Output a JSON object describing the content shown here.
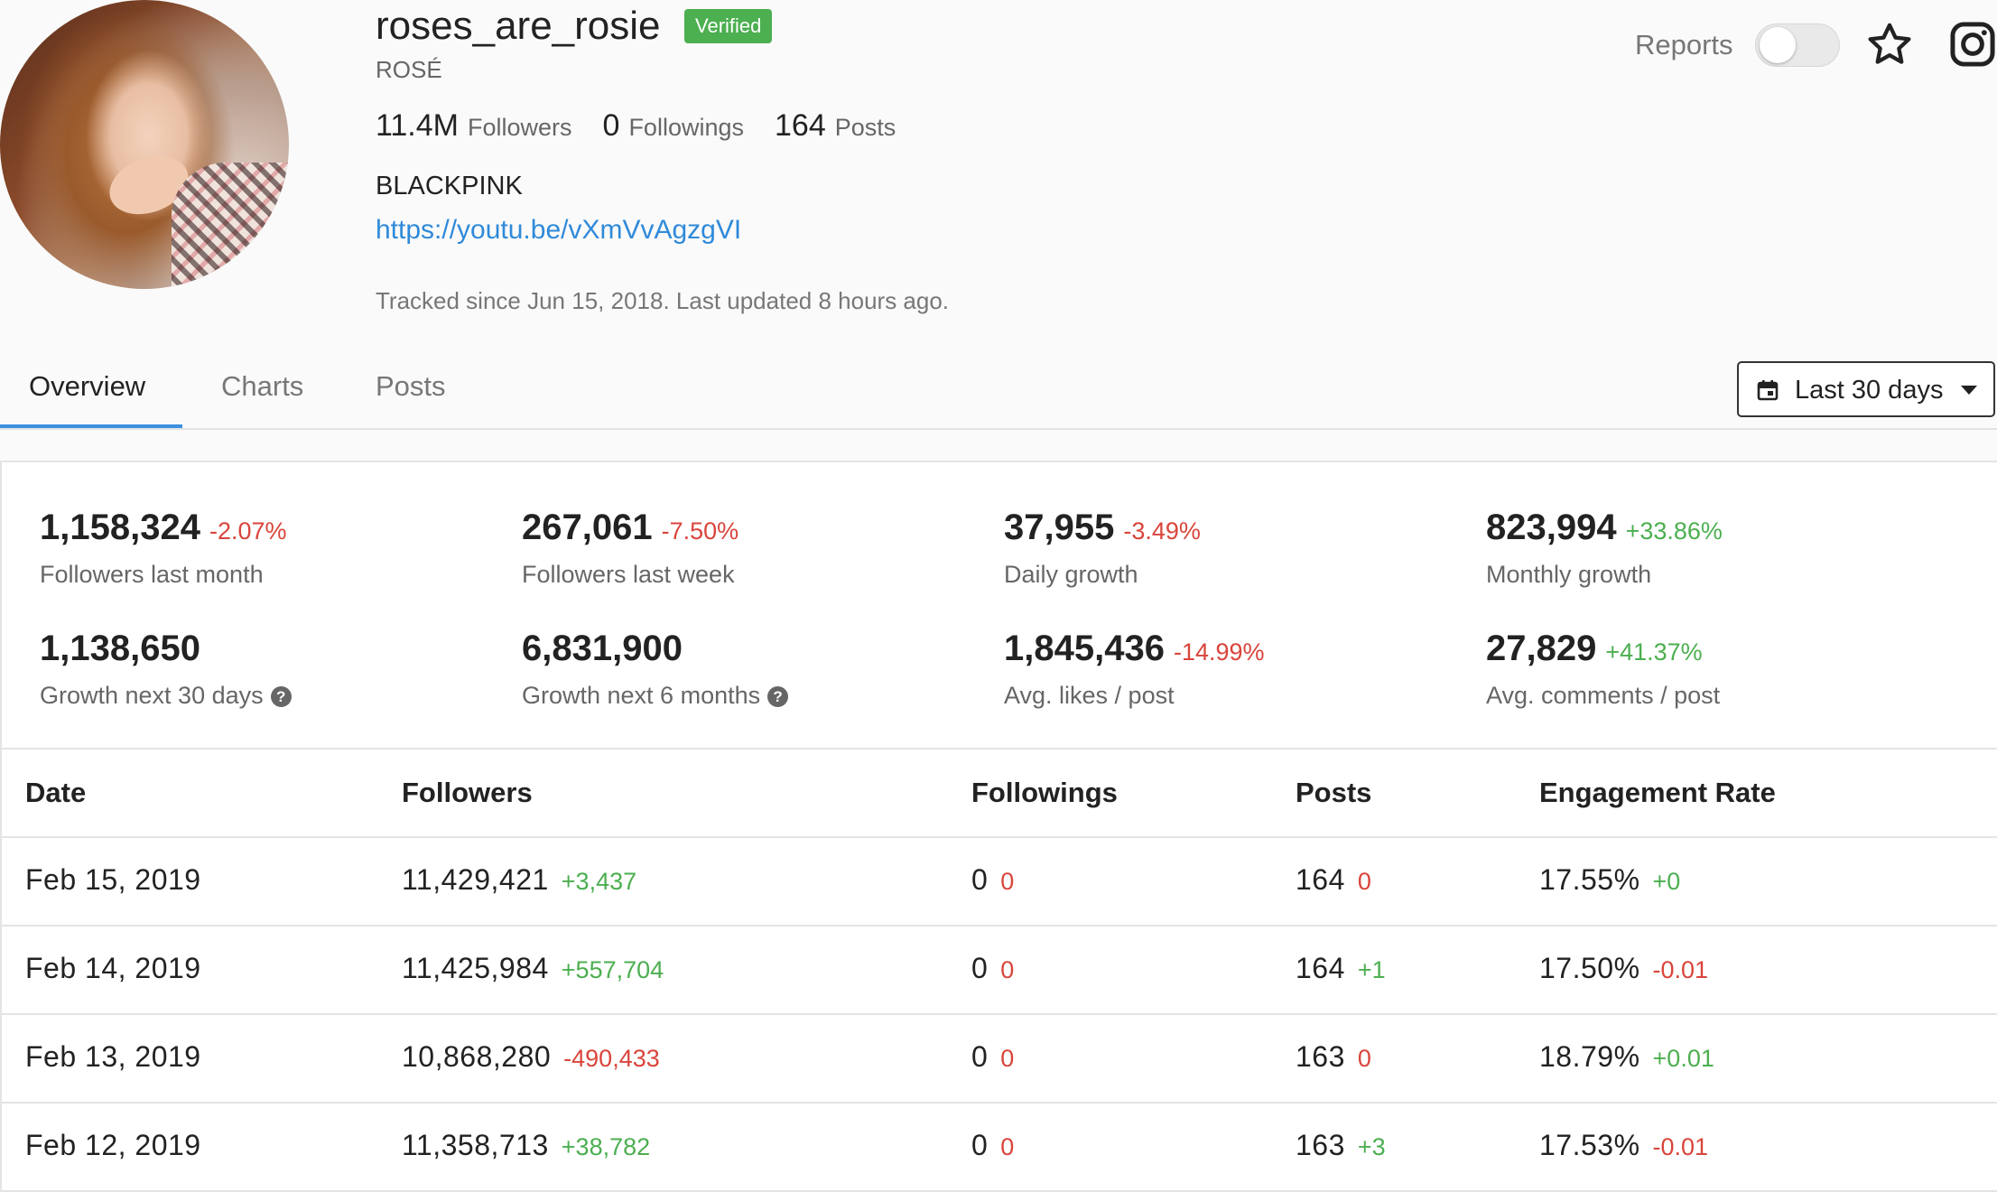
{
  "profile": {
    "username": "roses_are_rosie",
    "verified_label": "Verified",
    "full_name": "ROSÉ",
    "followers_value": "11.4M",
    "followers_label": "Followers",
    "followings_value": "0",
    "followings_label": "Followings",
    "posts_value": "164",
    "posts_label": "Posts",
    "bio": "BLACKPINK",
    "link": "https://youtu.be/vXmVvAgzgVI",
    "tracked": "Tracked since Jun 15, 2018. Last updated 8 hours ago."
  },
  "header_controls": {
    "reports_label": "Reports",
    "reports_enabled": false,
    "icons": [
      "star-icon",
      "instagram-icon"
    ]
  },
  "tabs": [
    {
      "label": "Overview",
      "active": true
    },
    {
      "label": "Charts",
      "active": false
    },
    {
      "label": "Posts",
      "active": false
    }
  ],
  "date_range": {
    "label": "Last 30 days",
    "icon": "calendar-icon"
  },
  "metrics": [
    {
      "value": "1,158,324",
      "change": "-2.07%",
      "label": "Followers last month",
      "help": false
    },
    {
      "value": "267,061",
      "change": "-7.50%",
      "label": "Followers last week",
      "help": false
    },
    {
      "value": "37,955",
      "change": "-3.49%",
      "label": "Daily growth",
      "help": false
    },
    {
      "value": "823,994",
      "change": "+33.86%",
      "label": "Monthly growth",
      "help": false
    },
    {
      "value": "1,138,650",
      "change": "",
      "label": "Growth next 30 days",
      "help": true
    },
    {
      "value": "6,831,900",
      "change": "",
      "label": "Growth next 6 months",
      "help": true
    },
    {
      "value": "1,845,436",
      "change": "-14.99%",
      "label": "Avg. likes / post",
      "help": false
    },
    {
      "value": "27,829",
      "change": "+41.37%",
      "label": "Avg. comments / post",
      "help": false
    }
  ],
  "help_glyph": "?",
  "table": {
    "headers": [
      "Date",
      "Followers",
      "Followings",
      "Posts",
      "Engagement Rate"
    ],
    "rows": [
      {
        "date": "Feb 15, 2019",
        "followers": "11,429,421",
        "followers_d": "+3,437",
        "followings": "0",
        "followings_d": "0",
        "posts": "164",
        "posts_d": "0",
        "er": "17.55%",
        "er_d": "+0"
      },
      {
        "date": "Feb 14, 2019",
        "followers": "11,425,984",
        "followers_d": "+557,704",
        "followings": "0",
        "followings_d": "0",
        "posts": "164",
        "posts_d": "+1",
        "er": "17.50%",
        "er_d": "-0.01"
      },
      {
        "date": "Feb 13, 2019",
        "followers": "10,868,280",
        "followers_d": "-490,433",
        "followings": "0",
        "followings_d": "0",
        "posts": "163",
        "posts_d": "0",
        "er": "18.79%",
        "er_d": "+0.01"
      },
      {
        "date": "Feb 12, 2019",
        "followers": "11,358,713",
        "followers_d": "+38,782",
        "followings": "0",
        "followings_d": "0",
        "posts": "163",
        "posts_d": "+3",
        "er": "17.53%",
        "er_d": "-0.01"
      }
    ]
  },
  "colors": {
    "positive": "#4caf50",
    "negative": "#d9453b",
    "link": "#2f8ad9",
    "accent": "#3d8fe0"
  }
}
